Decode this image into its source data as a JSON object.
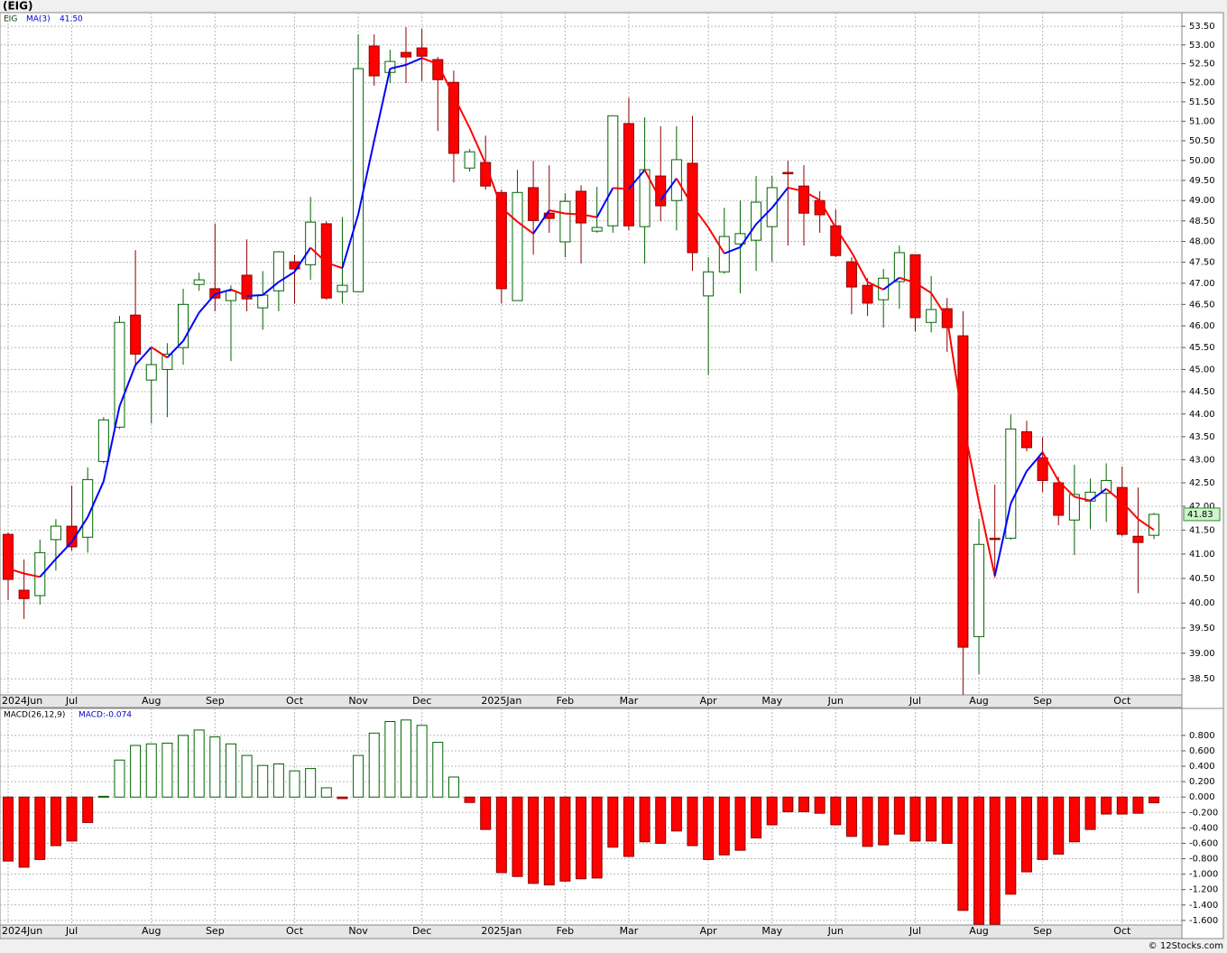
{
  "chart_data": [
    {
      "type": "candlestick",
      "title": "(EIG)",
      "log": true,
      "grid": true,
      "categories": [
        "2024Jun",
        null,
        null,
        null,
        "Jul",
        null,
        null,
        null,
        null,
        "Aug",
        null,
        null,
        null,
        "Sep",
        null,
        null,
        null,
        null,
        "Oct",
        null,
        null,
        null,
        "Nov",
        null,
        null,
        null,
        "Dec",
        null,
        null,
        null,
        null,
        "2025Jan",
        null,
        null,
        null,
        "Feb",
        null,
        null,
        null,
        "Mar",
        null,
        null,
        null,
        null,
        "Apr",
        null,
        null,
        null,
        "May",
        null,
        null,
        null,
        "Jun",
        null,
        null,
        null,
        null,
        "Jul",
        null,
        null,
        null,
        "Aug",
        null,
        null,
        null,
        "Sep",
        null,
        null,
        null,
        null,
        "Oct",
        null,
        null
      ],
      "series": [
        {
          "name": "EIG",
          "up_color": "#006400",
          "down_color": "#ff0000",
          "open": [
            41.41,
            40.26,
            40.15,
            41.3,
            41.58,
            41.35,
            42.96,
            43.71,
            46.25,
            44.76,
            45.0,
            45.5,
            46.97,
            46.87,
            46.59,
            47.19,
            46.42,
            46.82,
            47.51,
            47.44,
            48.43,
            46.8,
            46.8,
            52.97,
            52.27,
            52.8,
            52.92,
            52.61,
            52.01,
            49.81,
            49.95,
            49.2,
            46.59,
            49.32,
            48.69,
            47.99,
            49.23,
            48.25,
            48.38,
            50.94,
            48.36,
            49.61,
            49.0,
            49.93,
            46.7,
            47.27,
            47.94,
            48.03,
            48.36,
            49.7,
            49.36,
            49.0,
            48.38,
            47.51,
            46.95,
            46.61,
            47.04,
            47.68,
            46.08,
            46.4,
            45.77,
            39.33,
            41.33,
            41.33,
            43.61,
            43.04,
            42.5,
            41.71,
            42.11,
            42.28,
            42.4,
            41.37,
            41.39
          ],
          "high": [
            41.45,
            40.89,
            41.3,
            41.73,
            42.44,
            42.83,
            43.93,
            46.23,
            47.79,
            45.5,
            45.6,
            46.87,
            47.25,
            48.43,
            46.95,
            48.05,
            47.29,
            47.77,
            47.68,
            49.09,
            48.49,
            48.6,
            53.28,
            53.28,
            52.87,
            53.48,
            53.43,
            52.68,
            52.32,
            50.29,
            50.63,
            49.27,
            49.76,
            49.99,
            49.88,
            49.18,
            49.38,
            49.34,
            51.14,
            51.61,
            51.1,
            50.87,
            50.87,
            51.14,
            47.62,
            48.82,
            49.0,
            49.61,
            49.61,
            49.99,
            49.88,
            49.23,
            48.78,
            47.62,
            47.12,
            47.34,
            47.9,
            47.68,
            47.17,
            46.65,
            46.34,
            41.73,
            42.46,
            43.99,
            43.85,
            43.49,
            42.63,
            42.89,
            42.59,
            42.92,
            42.85,
            42.4,
            41.86
          ],
          "low": [
            40.06,
            39.68,
            39.97,
            40.66,
            41.07,
            41.03,
            42.92,
            43.67,
            45.11,
            43.79,
            43.93,
            45.11,
            46.82,
            46.34,
            45.19,
            46.34,
            45.91,
            46.34,
            46.52,
            47.08,
            46.61,
            46.52,
            46.78,
            51.92,
            51.99,
            51.99,
            52.04,
            50.75,
            49.45,
            49.72,
            49.27,
            46.52,
            46.59,
            47.68,
            48.21,
            47.62,
            47.47,
            48.21,
            48.21,
            48.27,
            47.47,
            48.49,
            48.27,
            47.29,
            44.88,
            47.23,
            46.76,
            47.29,
            47.51,
            47.9,
            47.9,
            48.21,
            47.62,
            46.27,
            46.23,
            45.96,
            46.4,
            45.87,
            45.85,
            45.4,
            38.19,
            38.59,
            40.51,
            41.3,
            43.18,
            42.3,
            41.6,
            40.98,
            41.52,
            41.67,
            41.37,
            40.2,
            41.31
          ],
          "close": [
            40.48,
            40.09,
            41.03,
            41.58,
            41.15,
            42.57,
            43.87,
            46.08,
            45.35,
            45.11,
            45.35,
            46.5,
            47.08,
            46.65,
            46.82,
            46.63,
            46.72,
            47.75,
            47.34,
            48.47,
            46.65,
            46.95,
            52.37,
            52.18,
            52.56,
            52.68,
            52.7,
            52.08,
            50.18,
            50.22,
            49.36,
            46.87,
            49.2,
            48.51,
            48.56,
            48.98,
            48.45,
            48.34,
            51.14,
            48.38,
            49.77,
            48.87,
            50.02,
            47.73,
            47.27,
            48.12,
            48.19,
            48.96,
            49.32,
            49.69,
            48.69,
            48.65,
            47.66,
            46.91,
            46.53,
            47.12,
            47.73,
            46.19,
            46.38,
            45.96,
            39.12,
            41.2,
            41.32,
            43.67,
            43.26,
            42.55,
            41.81,
            42.25,
            42.3,
            42.55,
            41.41,
            41.24,
            41.83
          ],
          "last_label": "41.83"
        }
      ],
      "ma": {
        "name": "MA(3)",
        "value_label": "41.50",
        "up_color": "#0000ff",
        "down_color": "#ff0000",
        "values": [
          40.7,
          40.6,
          40.53,
          40.9,
          41.25,
          41.77,
          42.53,
          44.17,
          45.1,
          45.51,
          45.27,
          45.65,
          46.31,
          46.74,
          46.85,
          46.7,
          46.72,
          47.03,
          47.27,
          47.85,
          47.49,
          47.36,
          48.66,
          50.5,
          52.37,
          52.47,
          52.65,
          52.49,
          51.65,
          50.83,
          49.92,
          48.82,
          48.48,
          48.19,
          48.76,
          48.68,
          48.66,
          48.59,
          49.31,
          49.29,
          49.76,
          49.01,
          49.55,
          48.87,
          48.34,
          47.71,
          47.86,
          48.42,
          48.82,
          49.32,
          49.23,
          49.01,
          48.33,
          47.74,
          47.03,
          46.85,
          47.13,
          47.01,
          46.77,
          46.18,
          43.82,
          42.09,
          40.55,
          42.06,
          42.75,
          43.16,
          42.54,
          42.2,
          42.12,
          42.37,
          42.09,
          41.73,
          41.5
        ]
      },
      "ylim": [
        38.19,
        53.87
      ],
      "yticks": [
        {
          "value": 53.5,
          "label": "53.50"
        },
        {
          "value": 53.0,
          "label": "53.00"
        },
        {
          "value": 52.5,
          "label": "52.50"
        },
        {
          "value": 52.0,
          "label": "52.00"
        },
        {
          "value": 51.5,
          "label": "51.50"
        },
        {
          "value": 51.0,
          "label": "51.00"
        },
        {
          "value": 50.5,
          "label": "50.50"
        },
        {
          "value": 50.0,
          "label": "50.00"
        },
        {
          "value": 49.5,
          "label": "49.50"
        },
        {
          "value": 49.0,
          "label": "49.00"
        },
        {
          "value": 48.5,
          "label": "48.50"
        },
        {
          "value": 48.0,
          "label": "48.00"
        },
        {
          "value": 47.5,
          "label": "47.50"
        },
        {
          "value": 47.0,
          "label": "47.00"
        },
        {
          "value": 46.5,
          "label": "46.50"
        },
        {
          "value": 46.0,
          "label": "46.00"
        },
        {
          "value": 45.5,
          "label": "45.50"
        },
        {
          "value": 45.0,
          "label": "45.00"
        },
        {
          "value": 44.5,
          "label": "44.50"
        },
        {
          "value": 44.0,
          "label": "44.00"
        },
        {
          "value": 43.5,
          "label": "43.50"
        },
        {
          "value": 43.0,
          "label": "43.00"
        },
        {
          "value": 42.5,
          "label": "42.50"
        },
        {
          "value": 42.0,
          "label": "42.00"
        },
        {
          "value": 41.5,
          "label": "41.50"
        },
        {
          "value": 41.0,
          "label": "41.00"
        },
        {
          "value": 40.5,
          "label": "40.50"
        },
        {
          "value": 40.0,
          "label": "40.00"
        },
        {
          "value": 39.5,
          "label": "39.50"
        },
        {
          "value": 39.0,
          "label": "39.00"
        },
        {
          "value": 38.5,
          "label": "38.50"
        }
      ]
    },
    {
      "type": "bar",
      "title": "MACD(26,12,9)",
      "value_label": "MACD:-0.074",
      "grid": true,
      "pos_color": "#006400",
      "neg_color": "#ff0000",
      "categories": [
        "2024Jun",
        null,
        null,
        null,
        "Jul",
        null,
        null,
        null,
        null,
        "Aug",
        null,
        null,
        null,
        "Sep",
        null,
        null,
        null,
        null,
        "Oct",
        null,
        null,
        null,
        "Nov",
        null,
        null,
        null,
        "Dec",
        null,
        null,
        null,
        null,
        "2025Jan",
        null,
        null,
        null,
        "Feb",
        null,
        null,
        null,
        "Mar",
        null,
        null,
        null,
        null,
        "Apr",
        null,
        null,
        null,
        "May",
        null,
        null,
        null,
        "Jun",
        null,
        null,
        null,
        null,
        "Jul",
        null,
        null,
        null,
        "Aug",
        null,
        null,
        null,
        "Sep",
        null,
        null,
        null,
        null,
        "Oct",
        null,
        null
      ],
      "values": [
        -0.83,
        -0.91,
        -0.81,
        -0.63,
        -0.57,
        -0.33,
        0.01,
        0.48,
        0.67,
        0.69,
        0.7,
        0.8,
        0.87,
        0.78,
        0.69,
        0.54,
        0.41,
        0.43,
        0.34,
        0.37,
        0.12,
        -0.02,
        0.54,
        0.83,
        0.98,
        1.0,
        0.93,
        0.71,
        0.26,
        -0.07,
        -0.42,
        -0.98,
        -1.03,
        -1.12,
        -1.14,
        -1.09,
        -1.06,
        -1.05,
        -0.65,
        -0.77,
        -0.58,
        -0.6,
        -0.44,
        -0.63,
        -0.81,
        -0.75,
        -0.69,
        -0.53,
        -0.36,
        -0.19,
        -0.19,
        -0.21,
        -0.36,
        -0.51,
        -0.64,
        -0.62,
        -0.48,
        -0.57,
        -0.57,
        -0.6,
        -1.47,
        -1.65,
        -1.65,
        -1.26,
        -0.97,
        -0.81,
        -0.74,
        -0.58,
        -0.42,
        -0.22,
        -0.22,
        -0.21,
        -0.074
      ],
      "ylim": [
        -1.66,
        1.15
      ],
      "yticks": [
        {
          "value": 0.8,
          "label": "0.800"
        },
        {
          "value": 0.6,
          "label": "0.600"
        },
        {
          "value": 0.4,
          "label": "0.400"
        },
        {
          "value": 0.2,
          "label": "0.200"
        },
        {
          "value": 0,
          "label": "0.000"
        },
        {
          "value": -0.2,
          "label": "-0.200"
        },
        {
          "value": -0.4,
          "label": "-0.400"
        },
        {
          "value": -0.6,
          "label": "-0.600"
        },
        {
          "value": -0.8,
          "label": "-0.800"
        },
        {
          "value": -1.0,
          "label": "-1.000"
        },
        {
          "value": -1.2,
          "label": "-1.200"
        },
        {
          "value": -1.4,
          "label": "-1.400"
        },
        {
          "value": -1.6,
          "label": "-1.600"
        }
      ]
    }
  ],
  "watermark": "© 12Stocks.com"
}
